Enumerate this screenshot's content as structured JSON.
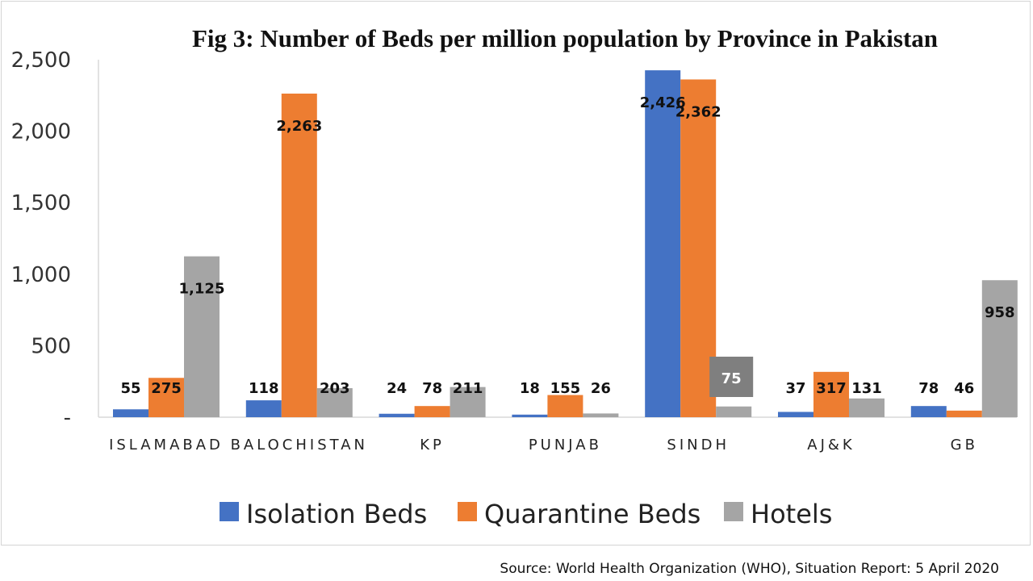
{
  "chart_data": {
    "type": "bar",
    "title": "Fig 3: Number of Beds per million population by Province in Pakistan",
    "categories": [
      "ISLAMABAD",
      "BALOCHISTAN",
      "KP",
      "PUNJAB",
      "SINDH",
      "AJ&K",
      "GB"
    ],
    "series": [
      {
        "name": "Isolation Beds",
        "color": "#4472c4",
        "values": [
          55,
          118,
          24,
          18,
          2426,
          37,
          78
        ],
        "labels": [
          "55",
          "118",
          "24",
          "18",
          "2,426",
          "37",
          "78"
        ]
      },
      {
        "name": "Quarantine Beds",
        "color": "#ed7d31",
        "values": [
          275,
          2263,
          78,
          155,
          2362,
          317,
          46
        ],
        "labels": [
          "275",
          "2,263",
          "78",
          "155",
          "2,362",
          "317",
          "46"
        ]
      },
      {
        "name": "Hotels",
        "color": "#a5a5a5",
        "values": [
          1125,
          203,
          211,
          26,
          75,
          131,
          958
        ],
        "labels": [
          "1,125",
          "203",
          "211",
          "26",
          "75",
          "131",
          "958"
        ]
      }
    ],
    "yticks": [
      "-",
      "500",
      "1,000",
      "1,500",
      "2,000",
      "2,500"
    ],
    "ylim": [
      0,
      2500
    ],
    "legend_position": "bottom",
    "grid": false,
    "source": "Source: World Health Organization (WHO), Situation Report: 5 April 2020"
  }
}
